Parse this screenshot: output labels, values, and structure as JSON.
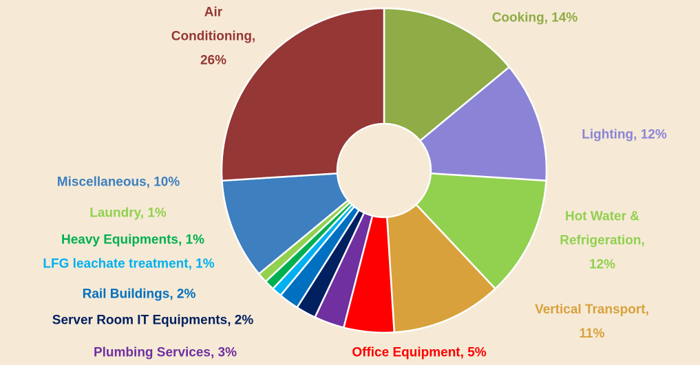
{
  "chart_data": {
    "type": "donut",
    "values": [
      14,
      12,
      12,
      11,
      5,
      3,
      2,
      2,
      1,
      1,
      1,
      10,
      26
    ],
    "value_labels": [
      "Cooking, 14%",
      "Lighting, 12%",
      "Hot Water & Refrigeration, 12%",
      "Vertical Transport, 11%",
      "Office Equipment, 5%",
      "Plumbing Services, 3%",
      "Server Room IT Equipments, 2%",
      "Rail Buildings, 2%",
      "LFG leachate treatment, 1%",
      "Heavy Equipments, 1%",
      "Laundry, 1%",
      "Miscellaneous, 10%",
      "Air Conditioning, 26%"
    ],
    "colors": [
      "#8fac46",
      "#8b84d6",
      "#92d050",
      "#d9a13b",
      "#ff0000",
      "#7030a0",
      "#002060",
      "#0070c0",
      "#00b0f0",
      "#00b050",
      "#92d050",
      "#3d7fbf",
      "#953735"
    ]
  }
}
